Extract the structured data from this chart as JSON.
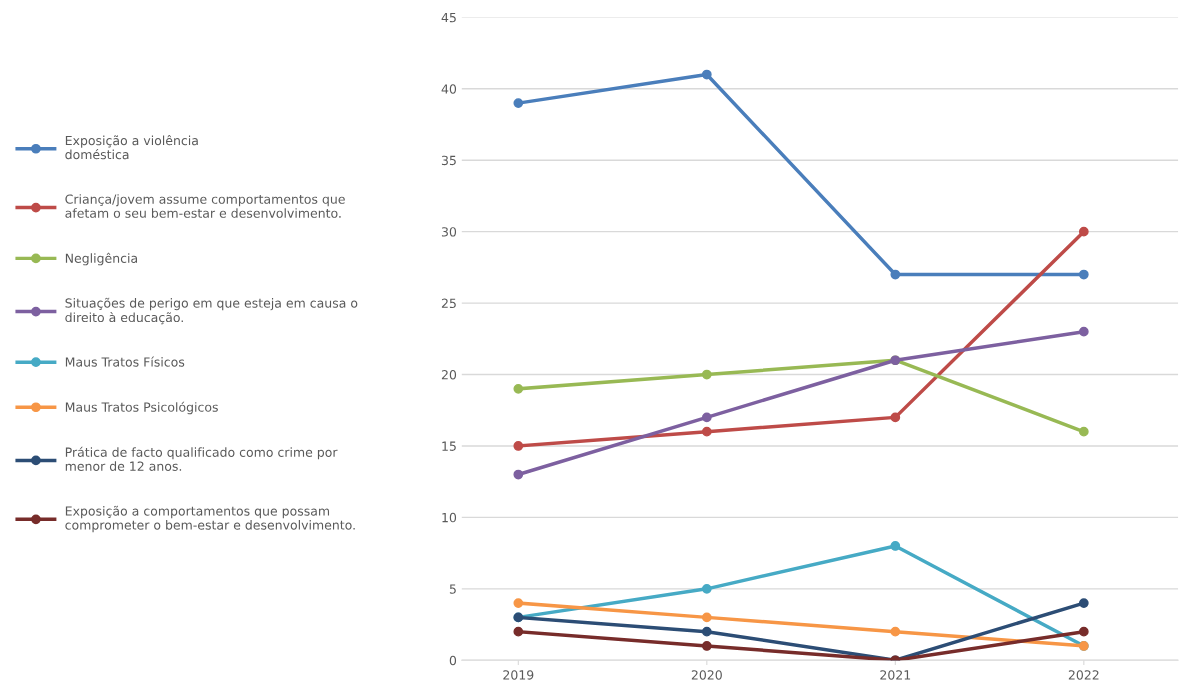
{
  "chart_data": {
    "type": "line",
    "categories": [
      "2019",
      "2020",
      "2021",
      "2022"
    ],
    "series": [
      {
        "name": "Exposição a violência\ndoméstica",
        "color": "#4a7ebb",
        "values": [
          39,
          41,
          27,
          27
        ]
      },
      {
        "name": "Criança/jovem assume comportamentos que\nafetam o seu bem-estar e desenvolvimento.",
        "color": "#be4b48",
        "values": [
          15,
          16,
          17,
          30
        ]
      },
      {
        "name": "Negligência",
        "color": "#98b954",
        "values": [
          19,
          20,
          21,
          16
        ]
      },
      {
        "name": "Situações de perigo em que esteja em causa o\ndireito à educação.",
        "color": "#7d60a0",
        "values": [
          13,
          17,
          21,
          23
        ]
      },
      {
        "name": "Maus Tratos Físicos",
        "color": "#46aac5",
        "values": [
          3,
          5,
          8,
          1
        ]
      },
      {
        "name": "Maus Tratos Psicológicos",
        "color": "#f79646",
        "values": [
          4,
          3,
          2,
          1
        ]
      },
      {
        "name": "Prática de facto qualificado como crime por\nmenor de 12 anos.",
        "color": "#2c4d75",
        "values": [
          3,
          2,
          0,
          4
        ]
      },
      {
        "name": "Exposição a comportamentos que possam\ncomprometer o bem-estar e desenvolvimento.",
        "color": "#772c2a",
        "values": [
          2,
          1,
          0,
          2
        ]
      }
    ],
    "ylim": [
      0,
      45
    ],
    "yticks": [
      0,
      5,
      10,
      15,
      20,
      25,
      30,
      35,
      40,
      45
    ],
    "grid": "y",
    "legend": "left",
    "marker": "circle",
    "line_style": "solid"
  }
}
